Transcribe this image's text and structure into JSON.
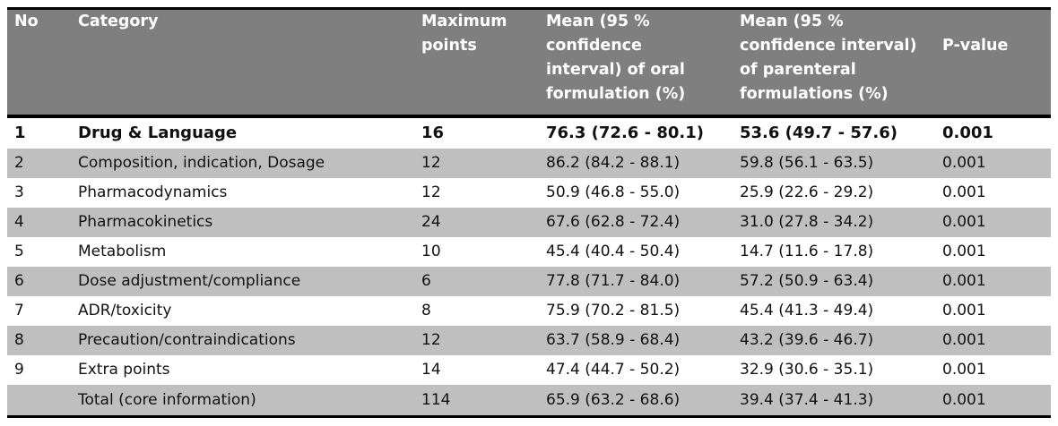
{
  "table": {
    "headers": {
      "no": "No",
      "category": "Category",
      "max_line1": "Maximum",
      "max_line2": "points",
      "oral_line1": "Mean (95 %",
      "oral_line2": "confidence",
      "oral_line3": "interval) of oral",
      "oral_line4": "formulation (%)",
      "par_line1": "Mean (95 %",
      "par_line2": "confidence interval)",
      "par_line3": "of parenteral",
      "par_line4": "formulations (%)",
      "pvalue": "P-value"
    },
    "rows": [
      {
        "no": "1",
        "category": "Drug & Language",
        "max": "16",
        "oral": "76.3 (72.6 - 80.1)",
        "par": "53.6 (49.7 - 57.6)",
        "p": "0.001"
      },
      {
        "no": "2",
        "category": "Composition, indication, Dosage",
        "max": "12",
        "oral": "86.2 (84.2 - 88.1)",
        "par": "59.8 (56.1 - 63.5)",
        "p": "0.001"
      },
      {
        "no": "3",
        "category": "Pharmacodynamics",
        "max": "12",
        "oral": "50.9 (46.8 - 55.0)",
        "par": "25.9 (22.6 - 29.2)",
        "p": "0.001"
      },
      {
        "no": "4",
        "category": "Pharmacokinetics",
        "max": "24",
        "oral": "67.6 (62.8 - 72.4)",
        "par": "31.0 (27.8 - 34.2)",
        "p": "0.001"
      },
      {
        "no": "5",
        "category": "Metabolism",
        "max": "10",
        "oral": "45.4 (40.4 - 50.4)",
        "par": "14.7 (11.6 - 17.8)",
        "p": "0.001"
      },
      {
        "no": "6",
        "category": "Dose adjustment/compliance",
        "max": "6",
        "oral": "77.8 (71.7 - 84.0)",
        "par": "57.2 (50.9 - 63.4)",
        "p": "0.001"
      },
      {
        "no": "7",
        "category": "ADR/toxicity",
        "max": "8",
        "oral": "75.9 (70.2 - 81.5)",
        "par": "45.4 (41.3 - 49.4)",
        "p": "0.001"
      },
      {
        "no": "8",
        "category": "Precaution/contraindications",
        "max": "12",
        "oral": "63.7 (58.9 - 68.4)",
        "par": "43.2 (39.6 - 46.7)",
        "p": "0.001"
      },
      {
        "no": "9",
        "category": "Extra points",
        "max": "14",
        "oral": "47.4 (44.7 - 50.2)",
        "par": "32.9 (30.6 - 35.1)",
        "p": "0.001"
      },
      {
        "no": "",
        "category": "Total (core information)",
        "max": "114",
        "oral": "65.9 (63.2 - 68.6)",
        "par": "39.4 (37.4 - 41.3)",
        "p": "0.001"
      }
    ]
  }
}
